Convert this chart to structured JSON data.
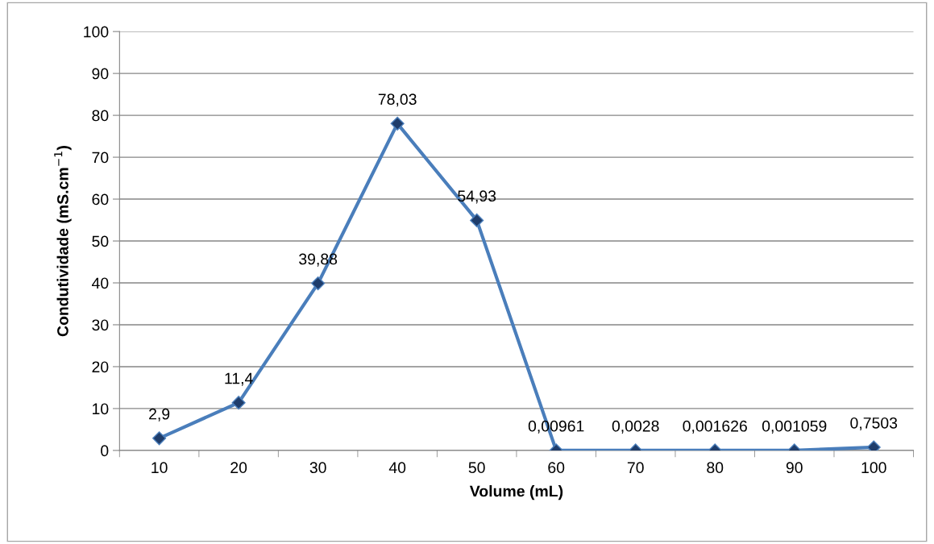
{
  "chart_data": {
    "type": "line",
    "xlabel": "Volume (mL)",
    "ylabel": "Condutividade (mS.cm$^{−1}$)",
    "categories": [
      "10",
      "20",
      "30",
      "40",
      "50",
      "60",
      "70",
      "80",
      "90",
      "100"
    ],
    "series": [
      {
        "color": "#4a7ebb",
        "values": [
          2.9,
          11.4,
          39.88,
          78.03,
          54.93,
          0.00961,
          0.0028,
          0.001626,
          0.001059,
          0.7503
        ],
        "value_labels": [
          "2,9",
          "11,4",
          "39,88",
          "78,03",
          "54,93",
          "0,00961",
          "0,0028",
          "0,001626",
          "0,001059",
          "0,7503"
        ]
      }
    ],
    "ylim": [
      0,
      100
    ],
    "yticks": [
      0,
      10,
      20,
      30,
      40,
      50,
      60,
      70,
      80,
      90,
      100
    ],
    "grid": "y",
    "legend": false,
    "marker": "diamond",
    "line_style": "solid"
  }
}
